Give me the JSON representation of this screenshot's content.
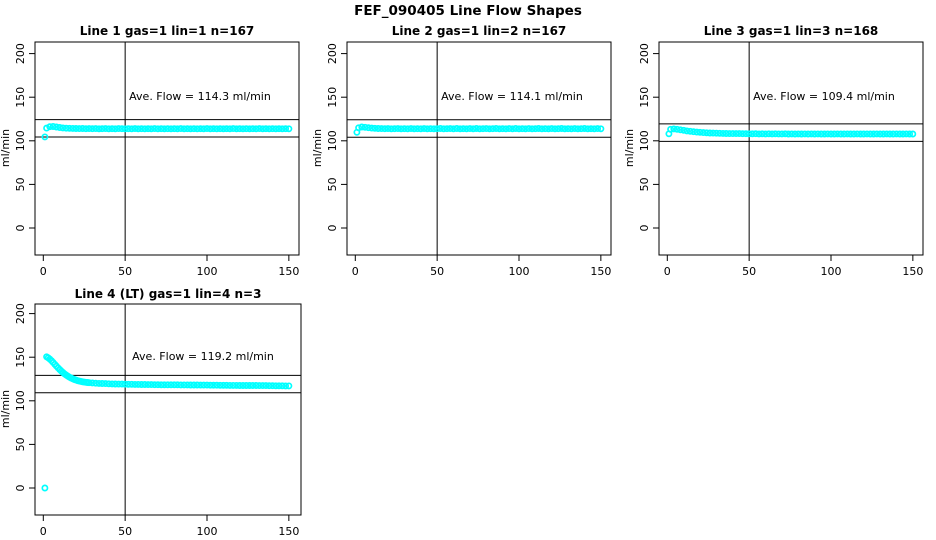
{
  "page_title": "FEF_090405  Line Flow Shapes",
  "colors": {
    "points": "#00FFFF",
    "axis": "#000000",
    "background": "#FFFFFF"
  },
  "axes": {
    "x_ticks": [
      0,
      50,
      100,
      150
    ],
    "y_ticks": [
      0,
      50,
      100,
      150,
      200
    ],
    "ylabel": "ml/min",
    "x_range": [
      0,
      150
    ],
    "y_range": [
      0,
      200
    ],
    "vline_x": 50
  },
  "chart_data": [
    {
      "type": "scatter",
      "title": "Line 1 gas=1 lin=1 n=167",
      "line": 1,
      "gas": 1,
      "lin": 1,
      "n": 167,
      "ave_flow": 114.3,
      "ave_flow_label": "Ave. Flow =  114.3  ml/min",
      "ylabel": "ml/min",
      "ref_lines": [
        124.3,
        104.3
      ],
      "vline_x": 50,
      "points": [
        [
          1,
          104.5
        ],
        [
          2,
          114.6
        ],
        [
          4,
          116.2
        ],
        [
          6,
          116.4
        ],
        [
          8,
          115.8
        ],
        [
          10,
          115.2
        ],
        [
          12,
          114.8
        ],
        [
          14,
          114.5
        ],
        [
          16,
          114.3
        ],
        [
          18,
          114.2
        ],
        [
          20,
          114.1
        ],
        [
          22,
          114.0
        ],
        [
          24,
          114.1
        ],
        [
          26,
          113.9
        ],
        [
          28,
          114.0
        ],
        [
          30,
          113.9
        ],
        [
          32,
          114.0
        ],
        [
          34,
          113.8
        ],
        [
          36,
          113.9
        ],
        [
          38,
          114.0
        ],
        [
          40,
          113.8
        ],
        [
          42,
          113.9
        ],
        [
          44,
          113.8
        ],
        [
          46,
          114.0
        ],
        [
          48,
          113.9
        ],
        [
          50,
          113.8
        ],
        [
          52,
          113.9
        ],
        [
          54,
          113.8
        ],
        [
          56,
          114.0
        ],
        [
          58,
          113.8
        ],
        [
          60,
          113.9
        ],
        [
          62,
          113.8
        ],
        [
          64,
          113.9
        ],
        [
          66,
          113.8
        ],
        [
          68,
          114.0
        ],
        [
          70,
          113.8
        ],
        [
          72,
          113.9
        ],
        [
          74,
          113.8
        ],
        [
          76,
          113.9
        ],
        [
          78,
          113.8
        ],
        [
          80,
          113.9
        ],
        [
          82,
          113.8
        ],
        [
          84,
          114.0
        ],
        [
          86,
          113.8
        ],
        [
          88,
          113.9
        ],
        [
          90,
          113.8
        ],
        [
          92,
          113.9
        ],
        [
          94,
          113.8
        ],
        [
          96,
          113.9
        ],
        [
          98,
          113.8
        ],
        [
          100,
          114.0
        ],
        [
          102,
          113.8
        ],
        [
          104,
          113.9
        ],
        [
          106,
          113.8
        ],
        [
          108,
          113.9
        ],
        [
          110,
          113.8
        ],
        [
          112,
          113.9
        ],
        [
          114,
          113.8
        ],
        [
          116,
          114.0
        ],
        [
          118,
          113.8
        ],
        [
          120,
          113.9
        ],
        [
          122,
          113.8
        ],
        [
          124,
          113.9
        ],
        [
          126,
          113.8
        ],
        [
          128,
          113.9
        ],
        [
          130,
          113.8
        ],
        [
          132,
          114.0
        ],
        [
          134,
          113.8
        ],
        [
          136,
          113.9
        ],
        [
          138,
          113.8
        ],
        [
          140,
          113.9
        ],
        [
          142,
          113.8
        ],
        [
          144,
          113.9
        ],
        [
          146,
          113.8
        ],
        [
          148,
          113.9
        ],
        [
          150,
          113.8
        ]
      ]
    },
    {
      "type": "scatter",
      "title": "Line 2 gas=1 lin=2 n=167",
      "line": 2,
      "gas": 1,
      "lin": 2,
      "n": 167,
      "ave_flow": 114.1,
      "ave_flow_label": "Ave. Flow =  114.1  ml/min",
      "ylabel": "ml/min",
      "ref_lines": [
        124.1,
        104.1
      ],
      "vline_x": 50,
      "points": [
        [
          1,
          109.8
        ],
        [
          2,
          114.9
        ],
        [
          4,
          115.8
        ],
        [
          6,
          115.5
        ],
        [
          8,
          115.0
        ],
        [
          10,
          114.6
        ],
        [
          12,
          114.3
        ],
        [
          14,
          114.1
        ],
        [
          16,
          114.0
        ],
        [
          18,
          113.9
        ],
        [
          20,
          114.0
        ],
        [
          22,
          113.8
        ],
        [
          24,
          113.9
        ],
        [
          26,
          114.0
        ],
        [
          28,
          113.8
        ],
        [
          30,
          113.9
        ],
        [
          32,
          113.8
        ],
        [
          34,
          114.0
        ],
        [
          36,
          113.8
        ],
        [
          38,
          113.9
        ],
        [
          40,
          113.8
        ],
        [
          42,
          114.0
        ],
        [
          44,
          113.8
        ],
        [
          46,
          113.9
        ],
        [
          48,
          113.8
        ],
        [
          50,
          113.9
        ],
        [
          52,
          114.1
        ],
        [
          54,
          113.8
        ],
        [
          56,
          113.9
        ],
        [
          58,
          114.0
        ],
        [
          60,
          113.8
        ],
        [
          62,
          114.1
        ],
        [
          64,
          113.8
        ],
        [
          66,
          113.9
        ],
        [
          68,
          113.8
        ],
        [
          70,
          114.0
        ],
        [
          72,
          113.8
        ],
        [
          74,
          114.1
        ],
        [
          76,
          113.8
        ],
        [
          78,
          113.9
        ],
        [
          80,
          114.0
        ],
        [
          82,
          113.8
        ],
        [
          84,
          113.9
        ],
        [
          86,
          114.1
        ],
        [
          88,
          113.8
        ],
        [
          90,
          113.9
        ],
        [
          92,
          113.8
        ],
        [
          94,
          114.0
        ],
        [
          96,
          113.8
        ],
        [
          98,
          114.1
        ],
        [
          100,
          113.8
        ],
        [
          102,
          113.9
        ],
        [
          104,
          113.8
        ],
        [
          106,
          114.0
        ],
        [
          108,
          113.8
        ],
        [
          110,
          113.9
        ],
        [
          112,
          114.1
        ],
        [
          114,
          113.8
        ],
        [
          116,
          113.9
        ],
        [
          118,
          113.8
        ],
        [
          120,
          114.0
        ],
        [
          122,
          113.8
        ],
        [
          124,
          113.9
        ],
        [
          126,
          114.1
        ],
        [
          128,
          113.8
        ],
        [
          130,
          113.9
        ],
        [
          132,
          113.8
        ],
        [
          134,
          114.0
        ],
        [
          136,
          113.8
        ],
        [
          138,
          113.9
        ],
        [
          140,
          114.1
        ],
        [
          142,
          113.8
        ],
        [
          144,
          113.9
        ],
        [
          146,
          113.8
        ],
        [
          148,
          114.0
        ],
        [
          150,
          113.8
        ]
      ]
    },
    {
      "type": "scatter",
      "title": "Line 3 gas=1 lin=3 n=168",
      "line": 3,
      "gas": 1,
      "lin": 3,
      "n": 168,
      "ave_flow": 109.4,
      "ave_flow_label": "Ave. Flow =  109.4  ml/min",
      "ylabel": "ml/min",
      "ref_lines": [
        119.4,
        99.4
      ],
      "vline_x": 50,
      "points": [
        [
          1,
          108.0
        ],
        [
          2,
          113.2
        ],
        [
          4,
          113.6
        ],
        [
          6,
          113.2
        ],
        [
          8,
          112.6
        ],
        [
          10,
          112.0
        ],
        [
          12,
          111.4
        ],
        [
          14,
          110.9
        ],
        [
          16,
          110.4
        ],
        [
          18,
          110.0
        ],
        [
          20,
          109.7
        ],
        [
          22,
          109.4
        ],
        [
          24,
          109.2
        ],
        [
          26,
          109.0
        ],
        [
          28,
          108.8
        ],
        [
          30,
          108.7
        ],
        [
          32,
          108.6
        ],
        [
          34,
          108.5
        ],
        [
          36,
          108.4
        ],
        [
          38,
          108.3
        ],
        [
          40,
          108.3
        ],
        [
          42,
          108.2
        ],
        [
          44,
          108.2
        ],
        [
          46,
          108.1
        ],
        [
          48,
          108.1
        ],
        [
          50,
          108.0
        ],
        [
          52,
          108.0
        ],
        [
          54,
          108.1
        ],
        [
          56,
          107.9
        ],
        [
          58,
          108.0
        ],
        [
          60,
          107.9
        ],
        [
          62,
          108.0
        ],
        [
          64,
          107.9
        ],
        [
          66,
          108.0
        ],
        [
          68,
          107.9
        ],
        [
          70,
          107.9
        ],
        [
          72,
          108.0
        ],
        [
          74,
          107.8
        ],
        [
          76,
          107.9
        ],
        [
          78,
          107.8
        ],
        [
          80,
          107.9
        ],
        [
          82,
          107.8
        ],
        [
          84,
          107.9
        ],
        [
          86,
          107.8
        ],
        [
          88,
          107.9
        ],
        [
          90,
          107.8
        ],
        [
          92,
          107.9
        ],
        [
          94,
          107.8
        ],
        [
          96,
          107.8
        ],
        [
          98,
          107.9
        ],
        [
          100,
          107.8
        ],
        [
          102,
          107.8
        ],
        [
          104,
          107.9
        ],
        [
          106,
          107.8
        ],
        [
          108,
          107.8
        ],
        [
          110,
          107.9
        ],
        [
          112,
          107.8
        ],
        [
          114,
          107.8
        ],
        [
          116,
          107.9
        ],
        [
          118,
          107.8
        ],
        [
          120,
          107.8
        ],
        [
          122,
          107.9
        ],
        [
          124,
          107.8
        ],
        [
          126,
          107.8
        ],
        [
          128,
          107.9
        ],
        [
          130,
          107.8
        ],
        [
          132,
          107.8
        ],
        [
          134,
          107.9
        ],
        [
          136,
          107.8
        ],
        [
          138,
          107.8
        ],
        [
          140,
          107.9
        ],
        [
          142,
          107.8
        ],
        [
          144,
          107.8
        ],
        [
          146,
          107.9
        ],
        [
          148,
          107.8
        ],
        [
          150,
          107.8
        ]
      ]
    },
    {
      "type": "scatter",
      "title": "Line 4 (LT) gas=1 lin=4 n=3",
      "line": 4,
      "line_note": "LT",
      "gas": 1,
      "lin": 4,
      "n": 3,
      "ave_flow": 119.2,
      "ave_flow_label": "Ave. Flow =  119.2  ml/min",
      "ylabel": "ml/min",
      "ref_lines": [
        129.2,
        109.2
      ],
      "vline_x": 50,
      "points": [
        [
          1,
          0
        ],
        [
          2,
          150.5
        ],
        [
          3,
          149.3
        ],
        [
          4,
          147.8
        ],
        [
          5,
          146.0
        ],
        [
          6,
          144.0
        ],
        [
          7,
          141.9
        ],
        [
          8,
          139.8
        ],
        [
          9,
          137.8
        ],
        [
          10,
          135.9
        ],
        [
          11,
          134.1
        ],
        [
          12,
          132.4
        ],
        [
          13,
          130.9
        ],
        [
          14,
          129.5
        ],
        [
          15,
          128.2
        ],
        [
          16,
          127.1
        ],
        [
          17,
          126.1
        ],
        [
          18,
          125.2
        ],
        [
          19,
          124.4
        ],
        [
          20,
          123.7
        ],
        [
          21,
          123.1
        ],
        [
          22,
          122.6
        ],
        [
          23,
          122.2
        ],
        [
          24,
          121.8
        ],
        [
          25,
          121.5
        ],
        [
          26,
          121.2
        ],
        [
          27,
          121.0
        ],
        [
          28,
          120.8
        ],
        [
          30,
          120.5
        ],
        [
          32,
          120.2
        ],
        [
          34,
          120.0
        ],
        [
          36,
          119.8
        ],
        [
          38,
          119.7
        ],
        [
          40,
          119.5
        ],
        [
          42,
          119.4
        ],
        [
          44,
          119.3
        ],
        [
          46,
          119.2
        ],
        [
          48,
          119.1
        ],
        [
          50,
          119.0
        ],
        [
          52,
          118.9
        ],
        [
          54,
          118.9
        ],
        [
          56,
          118.8
        ],
        [
          58,
          118.8
        ],
        [
          60,
          118.7
        ],
        [
          62,
          118.7
        ],
        [
          64,
          118.6
        ],
        [
          66,
          118.6
        ],
        [
          68,
          118.5
        ],
        [
          70,
          118.5
        ],
        [
          72,
          118.4
        ],
        [
          74,
          118.4
        ],
        [
          76,
          118.4
        ],
        [
          78,
          118.3
        ],
        [
          80,
          118.3
        ],
        [
          82,
          118.3
        ],
        [
          84,
          118.2
        ],
        [
          86,
          118.2
        ],
        [
          88,
          118.2
        ],
        [
          90,
          118.1
        ],
        [
          92,
          118.1
        ],
        [
          94,
          118.1
        ],
        [
          96,
          118.0
        ],
        [
          98,
          118.0
        ],
        [
          100,
          118.0
        ],
        [
          102,
          117.9
        ],
        [
          104,
          117.9
        ],
        [
          106,
          117.9
        ],
        [
          108,
          117.8
        ],
        [
          110,
          117.8
        ],
        [
          112,
          117.8
        ],
        [
          114,
          117.7
        ],
        [
          116,
          117.7
        ],
        [
          118,
          117.7
        ],
        [
          120,
          117.6
        ],
        [
          122,
          117.6
        ],
        [
          124,
          117.6
        ],
        [
          126,
          117.5
        ],
        [
          128,
          117.5
        ],
        [
          130,
          117.5
        ],
        [
          132,
          117.4
        ],
        [
          134,
          117.4
        ],
        [
          136,
          117.4
        ],
        [
          138,
          117.3
        ],
        [
          140,
          117.3
        ],
        [
          142,
          117.2
        ],
        [
          144,
          117.2
        ],
        [
          146,
          117.2
        ],
        [
          148,
          117.1
        ],
        [
          150,
          117.1
        ]
      ]
    }
  ]
}
